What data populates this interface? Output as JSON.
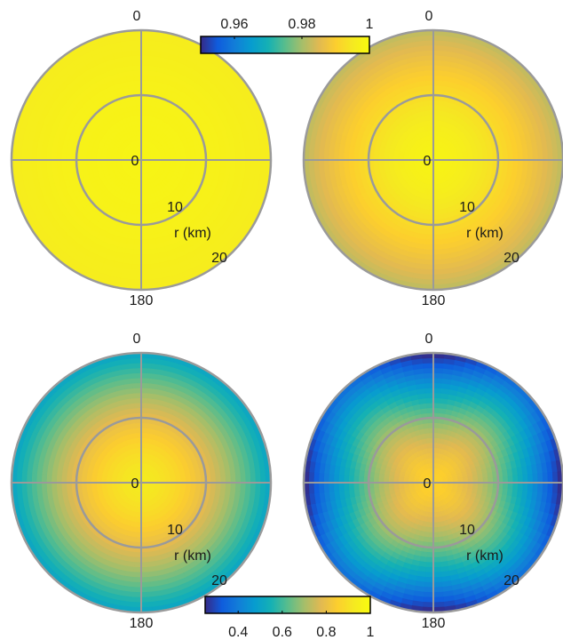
{
  "chart_data": [
    {
      "type": "heatmap",
      "projection": "polar",
      "panel": "top-left",
      "angle_labels": [
        "0",
        "180"
      ],
      "radius_label": "r (km)",
      "radius_ticks": [
        "0",
        "10",
        "20"
      ],
      "r_max_km": 27,
      "colorbar_ref": "top",
      "profile": {
        "center": 0.998,
        "edge": 0.996,
        "anisotropy": 0.0
      }
    },
    {
      "type": "heatmap",
      "projection": "polar",
      "panel": "top-right",
      "angle_labels": [
        "0",
        "180"
      ],
      "radius_label": "r (km)",
      "radius_ticks": [
        "0",
        "10",
        "20"
      ],
      "r_max_km": 27,
      "colorbar_ref": "top",
      "profile": {
        "center": 0.998,
        "edge": 0.982,
        "anisotropy": 0.01
      }
    },
    {
      "type": "heatmap",
      "projection": "polar",
      "panel": "bottom-left",
      "angle_labels": [
        "0",
        "180"
      ],
      "radius_label": "r (km)",
      "radius_ticks": [
        "0",
        "10",
        "20"
      ],
      "r_max_km": 27,
      "colorbar_ref": "bottom",
      "profile": {
        "center": 0.93,
        "edge": 0.5,
        "anisotropy": 0.0
      }
    },
    {
      "type": "heatmap",
      "projection": "polar",
      "panel": "bottom-right",
      "angle_labels": [
        "0",
        "180"
      ],
      "radius_label": "r (km)",
      "radius_ticks": [
        "0",
        "10",
        "20"
      ],
      "r_max_km": 27,
      "colorbar_ref": "bottom",
      "profile": {
        "center": 0.86,
        "edge": 0.3,
        "anisotropy": 0.22
      }
    }
  ],
  "colorbars": {
    "top": {
      "min": 0.95,
      "max": 1.0,
      "ticks": [
        0.96,
        0.98,
        1
      ],
      "tick_labels": [
        "0.96",
        "0.98",
        "1"
      ],
      "colormap": "parula"
    },
    "bottom": {
      "min": 0.25,
      "max": 1.0,
      "ticks": [
        0.4,
        0.6,
        0.8,
        1
      ],
      "tick_labels": [
        "0.4",
        "0.6",
        "0.8",
        "1"
      ],
      "colormap": "parula"
    }
  },
  "colors": {
    "grid": "#9a9a9a",
    "colorbar_border": "#000000"
  }
}
